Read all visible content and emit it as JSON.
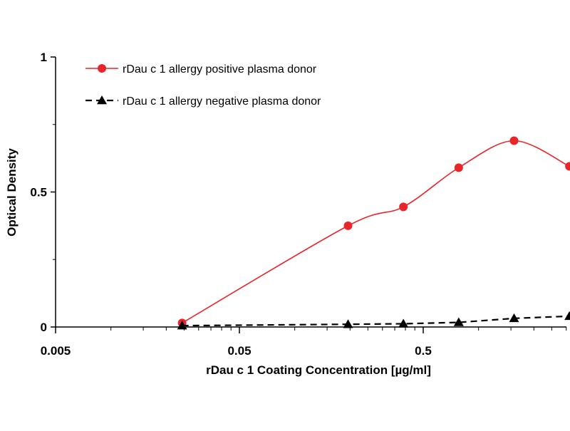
{
  "chart_data": {
    "type": "line",
    "title": "",
    "xlabel": "rDau c 1 Coating Concentration [µg/ml]",
    "ylabel": "Optical Density",
    "x_scale": "log",
    "xlim": [
      0.005,
      2
    ],
    "ylim": [
      0,
      1
    ],
    "x_ticks": [
      {
        "value": 0.005,
        "label": "0.005"
      },
      {
        "value": 0.05,
        "label": "0.05"
      },
      {
        "value": 0.5,
        "label": "0.5"
      }
    ],
    "y_ticks": [
      {
        "value": 0,
        "label": "0"
      },
      {
        "value": 0.5,
        "label": "0.5"
      },
      {
        "value": 1,
        "label": "1"
      }
    ],
    "grid": false,
    "legend": "top-left",
    "series": [
      {
        "name": "rDau c 1 allergy positive plasma donor",
        "color": "#e8262a",
        "marker": "circle",
        "line": "solid-smooth",
        "x": [
          0.0244,
          0.195,
          0.39,
          0.78,
          1.56,
          3.12
        ],
        "y": [
          0.015,
          0.375,
          0.445,
          0.59,
          0.69,
          0.595
        ]
      },
      {
        "name": "rDau c 1 allergy negative plasma donor",
        "color": "#000000",
        "marker": "triangle",
        "line": "dashed",
        "x": [
          0.0244,
          0.195,
          0.39,
          0.78,
          1.56,
          3.12
        ],
        "y": [
          0.005,
          0.01,
          0.012,
          0.017,
          0.032,
          0.04
        ]
      }
    ]
  }
}
